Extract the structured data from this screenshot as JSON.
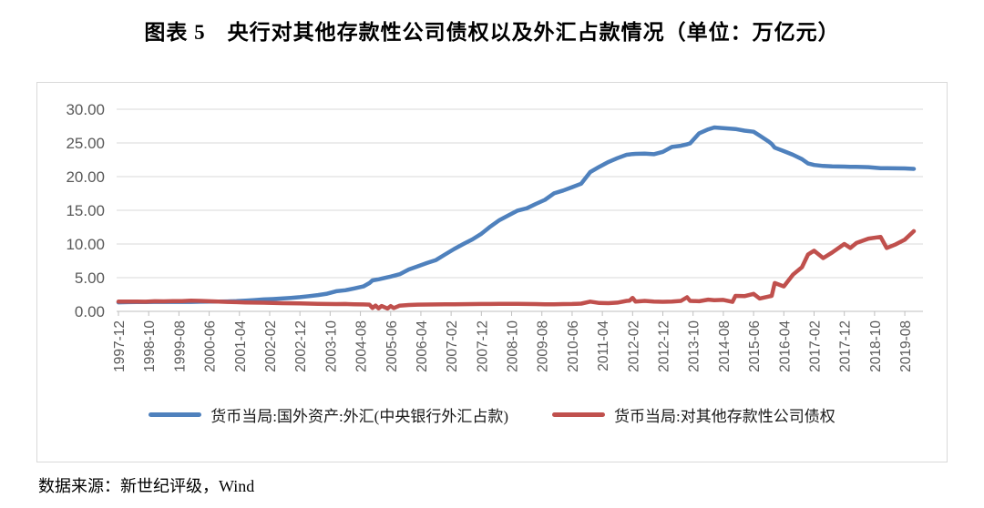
{
  "title": "图表 5　央行对其他存款性公司债权以及外汇占款情况（单位：万亿元）",
  "footer": {
    "source_label": "数据来源：新世纪评级，Wind"
  },
  "chart_data": {
    "type": "line",
    "title": "图表 5　央行对其他存款性公司债权以及外汇占款情况（单位：万亿元）",
    "unit": "万亿元",
    "xlabel": "",
    "ylabel": "",
    "ylim": [
      0,
      30
    ],
    "grid": "horizontal",
    "legend_position": "bottom",
    "axis_label_color": "#595959",
    "gridline_color": "#d9d9d9",
    "axis_line_color": "#bfbfbf",
    "y_ticks": [
      "0.00",
      "5.00",
      "10.00",
      "15.00",
      "20.00",
      "25.00",
      "30.00"
    ],
    "x_tick_labels": [
      "1997-12",
      "1998-10",
      "1999-08",
      "2000-06",
      "2001-04",
      "2002-02",
      "2002-12",
      "2003-10",
      "2004-08",
      "2005-06",
      "2006-04",
      "2007-02",
      "2007-12",
      "2008-10",
      "2009-08",
      "2010-06",
      "2011-04",
      "2012-02",
      "2012-12",
      "2013-10",
      "2014-08",
      "2015-06",
      "2016-04",
      "2017-02",
      "2017-12",
      "2018-10",
      "2019-08"
    ],
    "x": [
      "1997-12",
      "1998-03",
      "1998-06",
      "1998-09",
      "1998-12",
      "1999-03",
      "1999-06",
      "1999-09",
      "1999-12",
      "2000-03",
      "2000-06",
      "2000-09",
      "2000-12",
      "2001-03",
      "2001-06",
      "2001-09",
      "2001-12",
      "2002-03",
      "2002-06",
      "2002-09",
      "2002-12",
      "2003-03",
      "2003-06",
      "2003-09",
      "2003-12",
      "2004-03",
      "2004-06",
      "2004-09",
      "2004-11",
      "2004-12",
      "2005-01",
      "2005-02",
      "2005-03",
      "2005-05",
      "2005-06",
      "2005-07",
      "2005-09",
      "2005-12",
      "2006-03",
      "2006-06",
      "2006-09",
      "2006-12",
      "2007-03",
      "2007-06",
      "2007-09",
      "2007-12",
      "2008-03",
      "2008-06",
      "2008-09",
      "2008-12",
      "2009-03",
      "2009-06",
      "2009-09",
      "2009-12",
      "2010-03",
      "2010-06",
      "2010-09",
      "2010-12",
      "2011-03",
      "2011-06",
      "2011-09",
      "2011-12",
      "2012-01",
      "2012-02",
      "2012-03",
      "2012-06",
      "2012-09",
      "2012-12",
      "2013-03",
      "2013-06",
      "2013-08",
      "2013-09",
      "2013-12",
      "2014-03",
      "2014-05",
      "2014-08",
      "2014-11",
      "2014-12",
      "2015-03",
      "2015-06",
      "2015-08",
      "2015-11",
      "2015-12",
      "2016-01",
      "2016-04",
      "2016-07",
      "2016-10",
      "2016-12",
      "2017-02",
      "2017-05",
      "2017-08",
      "2017-12",
      "2018-02",
      "2018-04",
      "2018-08",
      "2018-12",
      "2019-02",
      "2019-05",
      "2019-08",
      "2019-11"
    ],
    "series": [
      {
        "name": "货币当局:国外资产:外汇(中央银行外汇占款)",
        "color": "#4F81BD",
        "values": [
          1.34,
          1.36,
          1.38,
          1.39,
          1.4,
          1.4,
          1.41,
          1.41,
          1.41,
          1.43,
          1.44,
          1.45,
          1.47,
          1.52,
          1.6,
          1.68,
          1.77,
          1.82,
          1.9,
          2.0,
          2.11,
          2.25,
          2.42,
          2.62,
          2.98,
          3.14,
          3.41,
          3.7,
          4.2,
          4.59,
          4.68,
          4.75,
          4.85,
          5.05,
          5.16,
          5.28,
          5.52,
          6.21,
          6.69,
          7.17,
          7.62,
          8.44,
          9.26,
          9.98,
          10.67,
          11.52,
          12.6,
          13.56,
          14.26,
          14.96,
          15.3,
          15.95,
          16.55,
          17.52,
          17.93,
          18.43,
          18.95,
          20.68,
          21.46,
          22.17,
          22.74,
          23.24,
          23.3,
          23.35,
          23.38,
          23.42,
          23.32,
          23.67,
          24.41,
          24.58,
          24.8,
          24.93,
          26.43,
          27.02,
          27.3,
          27.2,
          27.1,
          27.07,
          26.82,
          26.66,
          26.1,
          25.2,
          24.85,
          24.3,
          23.78,
          23.24,
          22.6,
          21.94,
          21.73,
          21.58,
          21.51,
          21.48,
          21.46,
          21.45,
          21.4,
          21.25,
          21.24,
          21.23,
          21.21,
          21.15
        ]
      },
      {
        "name": "货币当局:对其他存款性公司债权",
        "color": "#C0504D",
        "values": [
          1.45,
          1.46,
          1.44,
          1.43,
          1.5,
          1.49,
          1.51,
          1.53,
          1.6,
          1.56,
          1.5,
          1.44,
          1.4,
          1.36,
          1.32,
          1.3,
          1.28,
          1.25,
          1.22,
          1.2,
          1.18,
          1.15,
          1.12,
          1.1,
          1.08,
          1.1,
          1.06,
          1.03,
          1.0,
          0.5,
          0.85,
          0.45,
          0.8,
          0.42,
          0.78,
          0.48,
          0.85,
          0.95,
          1.0,
          1.02,
          1.03,
          1.05,
          1.05,
          1.07,
          1.08,
          1.1,
          1.1,
          1.12,
          1.12,
          1.12,
          1.1,
          1.08,
          1.06,
          1.05,
          1.08,
          1.1,
          1.15,
          1.45,
          1.25,
          1.22,
          1.3,
          1.55,
          1.6,
          2.0,
          1.45,
          1.55,
          1.45,
          1.42,
          1.45,
          1.55,
          2.1,
          1.55,
          1.5,
          1.75,
          1.65,
          1.7,
          1.4,
          2.3,
          2.25,
          2.6,
          1.9,
          2.2,
          2.3,
          4.2,
          3.7,
          5.45,
          6.55,
          8.45,
          9.0,
          7.9,
          8.75,
          10.0,
          9.4,
          10.15,
          10.8,
          11.05,
          9.4,
          9.95,
          10.65,
          11.9
        ]
      }
    ]
  }
}
